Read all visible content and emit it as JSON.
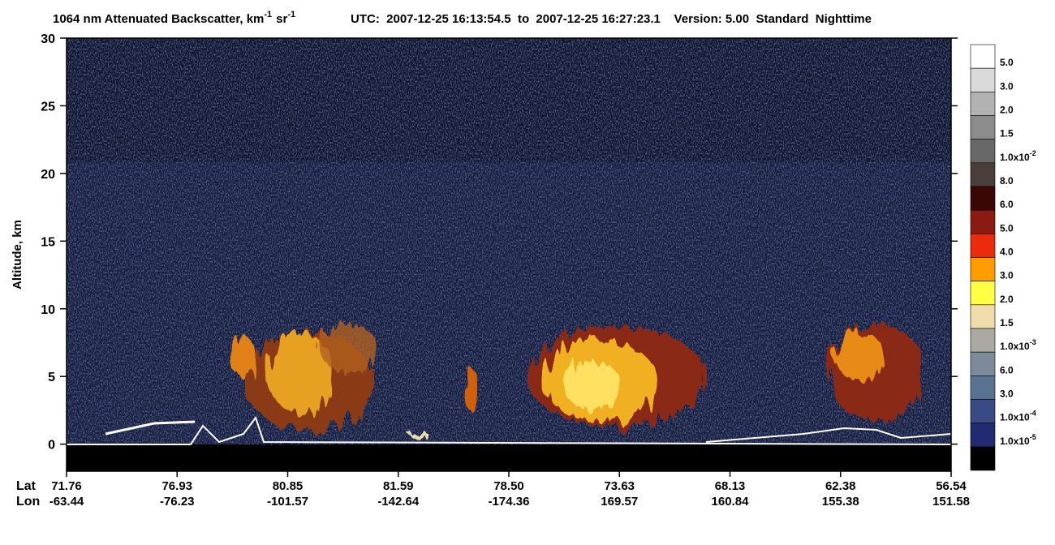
{
  "chart_data": {
    "type": "heatmap",
    "title_parts": [
      "1064 nm Attenuated Backscatter, km",
      "-1",
      "sr",
      "-1"
    ],
    "subtitle": "UTC:  2007-12-25 16:13:54.5  to  2007-12-25 16:27:23.1    Version: 5.00  Standard  Nighttime",
    "ylabel": "Altitude, km",
    "ylim": [
      -2,
      30
    ],
    "yticks": [
      0,
      5,
      10,
      15,
      20,
      25,
      30
    ],
    "x_rows": [
      {
        "name": "Lat",
        "labels": [
          "71.76",
          "76.93",
          "80.85",
          "81.59",
          "78.50",
          "73.63",
          "68.13",
          "62.38",
          "56.54"
        ]
      },
      {
        "name": "Lon",
        "labels": [
          "-63.44",
          "-76.23",
          "-101.57",
          "-142.64",
          "-174.36",
          "169.57",
          "160.84",
          "155.38",
          "151.58"
        ]
      }
    ],
    "colorbar": {
      "colors": [
        "#ffffff",
        "#dadada",
        "#b2b2b2",
        "#8c8c8c",
        "#686868",
        "#4a3e3a",
        "#3a0606",
        "#8a1a12",
        "#ea2c0c",
        "#ff9c00",
        "#ffff44",
        "#eedcaa",
        "#aaaaa2",
        "#7c8a9a",
        "#5a7292",
        "#3a4a84",
        "#222a72",
        "#000000"
      ],
      "labels": [
        "5.0",
        "3.0",
        "2.0",
        "1.5",
        {
          "base": "1.0x10",
          "sup": "-2"
        },
        "8.0",
        "6.0",
        "5.0",
        "4.0",
        "3.0",
        "2.0",
        "1.5",
        {
          "base": "1.0x10",
          "sup": "-3"
        },
        "6.0",
        "3.0",
        {
          "base": "1.0x10",
          "sup": "-4"
        },
        {
          "base": "1.0x10",
          "sup": "-5"
        }
      ]
    }
  }
}
